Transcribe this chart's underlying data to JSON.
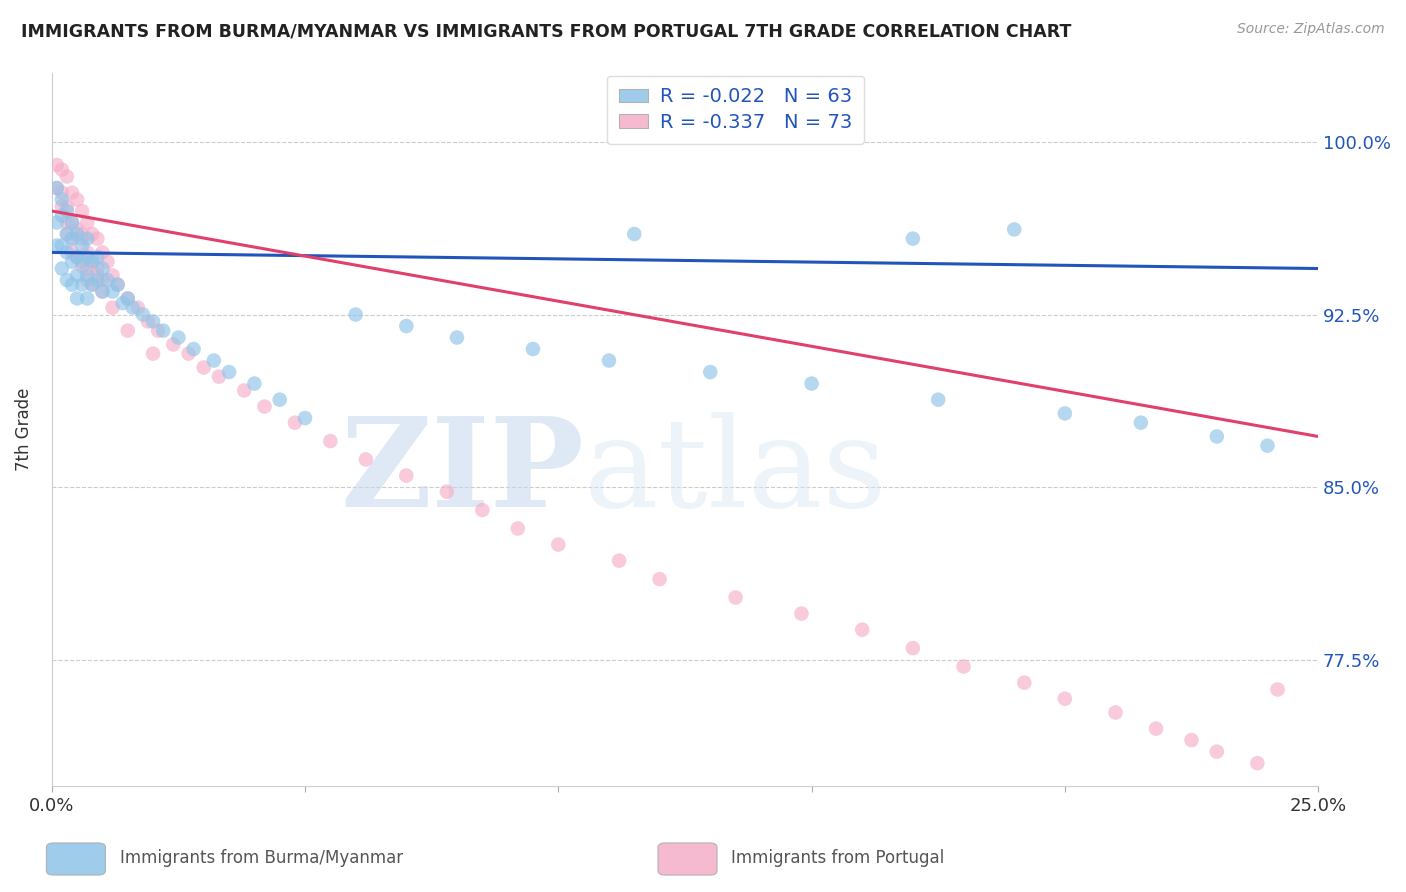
{
  "title": "IMMIGRANTS FROM BURMA/MYANMAR VS IMMIGRANTS FROM PORTUGAL 7TH GRADE CORRELATION CHART",
  "source": "Source: ZipAtlas.com",
  "ylabel": "7th Grade",
  "ytick_labels": [
    "100.0%",
    "92.5%",
    "85.0%",
    "77.5%"
  ],
  "ytick_values": [
    1.0,
    0.925,
    0.85,
    0.775
  ],
  "xlim": [
    0.0,
    0.25
  ],
  "ylim": [
    0.72,
    1.03
  ],
  "legend_blue_r": "-0.022",
  "legend_blue_n": "63",
  "legend_pink_r": "-0.337",
  "legend_pink_n": "73",
  "blue_color": "#8ec4e8",
  "pink_color": "#f5aec8",
  "blue_line_color": "#2255bb",
  "pink_line_color": "#e0406a",
  "watermark_zip": "ZIP",
  "watermark_atlas": "atlas",
  "blue_scatter_x": [
    0.001,
    0.001,
    0.001,
    0.002,
    0.002,
    0.002,
    0.002,
    0.003,
    0.003,
    0.003,
    0.003,
    0.004,
    0.004,
    0.004,
    0.004,
    0.005,
    0.005,
    0.005,
    0.005,
    0.006,
    0.006,
    0.006,
    0.007,
    0.007,
    0.007,
    0.007,
    0.008,
    0.008,
    0.009,
    0.009,
    0.01,
    0.01,
    0.011,
    0.012,
    0.013,
    0.014,
    0.015,
    0.016,
    0.018,
    0.02,
    0.022,
    0.025,
    0.028,
    0.032,
    0.035,
    0.04,
    0.045,
    0.05,
    0.06,
    0.07,
    0.08,
    0.095,
    0.11,
    0.13,
    0.15,
    0.175,
    0.2,
    0.215,
    0.23,
    0.24,
    0.115,
    0.17,
    0.19
  ],
  "blue_scatter_y": [
    0.98,
    0.965,
    0.955,
    0.975,
    0.968,
    0.955,
    0.945,
    0.97,
    0.96,
    0.952,
    0.94,
    0.965,
    0.958,
    0.948,
    0.938,
    0.96,
    0.95,
    0.942,
    0.932,
    0.955,
    0.948,
    0.938,
    0.958,
    0.95,
    0.942,
    0.932,
    0.948,
    0.938,
    0.95,
    0.94,
    0.945,
    0.935,
    0.94,
    0.935,
    0.938,
    0.93,
    0.932,
    0.928,
    0.925,
    0.922,
    0.918,
    0.915,
    0.91,
    0.905,
    0.9,
    0.895,
    0.888,
    0.88,
    0.925,
    0.92,
    0.915,
    0.91,
    0.905,
    0.9,
    0.895,
    0.888,
    0.882,
    0.878,
    0.872,
    0.868,
    0.96,
    0.958,
    0.962
  ],
  "pink_scatter_x": [
    0.001,
    0.001,
    0.002,
    0.002,
    0.003,
    0.003,
    0.003,
    0.004,
    0.004,
    0.004,
    0.005,
    0.005,
    0.005,
    0.006,
    0.006,
    0.006,
    0.007,
    0.007,
    0.007,
    0.008,
    0.008,
    0.009,
    0.009,
    0.01,
    0.01,
    0.011,
    0.012,
    0.013,
    0.015,
    0.017,
    0.019,
    0.021,
    0.024,
    0.027,
    0.03,
    0.033,
    0.038,
    0.042,
    0.048,
    0.055,
    0.062,
    0.07,
    0.078,
    0.085,
    0.092,
    0.1,
    0.112,
    0.12,
    0.135,
    0.148,
    0.16,
    0.17,
    0.18,
    0.192,
    0.2,
    0.21,
    0.218,
    0.225,
    0.23,
    0.238,
    0.002,
    0.003,
    0.004,
    0.005,
    0.006,
    0.007,
    0.008,
    0.009,
    0.01,
    0.012,
    0.015,
    0.02,
    0.242
  ],
  "pink_scatter_y": [
    0.99,
    0.98,
    0.988,
    0.972,
    0.985,
    0.972,
    0.96,
    0.978,
    0.965,
    0.952,
    0.975,
    0.962,
    0.95,
    0.97,
    0.958,
    0.946,
    0.965,
    0.952,
    0.94,
    0.96,
    0.948,
    0.958,
    0.945,
    0.952,
    0.94,
    0.948,
    0.942,
    0.938,
    0.932,
    0.928,
    0.922,
    0.918,
    0.912,
    0.908,
    0.902,
    0.898,
    0.892,
    0.885,
    0.878,
    0.87,
    0.862,
    0.855,
    0.848,
    0.84,
    0.832,
    0.825,
    0.818,
    0.81,
    0.802,
    0.795,
    0.788,
    0.78,
    0.772,
    0.765,
    0.758,
    0.752,
    0.745,
    0.74,
    0.735,
    0.73,
    0.978,
    0.965,
    0.958,
    0.95,
    0.96,
    0.945,
    0.938,
    0.942,
    0.935,
    0.928,
    0.918,
    0.908,
    0.762
  ],
  "blue_trendline_x": [
    0.0,
    0.25
  ],
  "blue_trendline_y": [
    0.952,
    0.945
  ],
  "pink_trendline_x": [
    0.0,
    0.25
  ],
  "pink_trendline_y": [
    0.97,
    0.872
  ]
}
